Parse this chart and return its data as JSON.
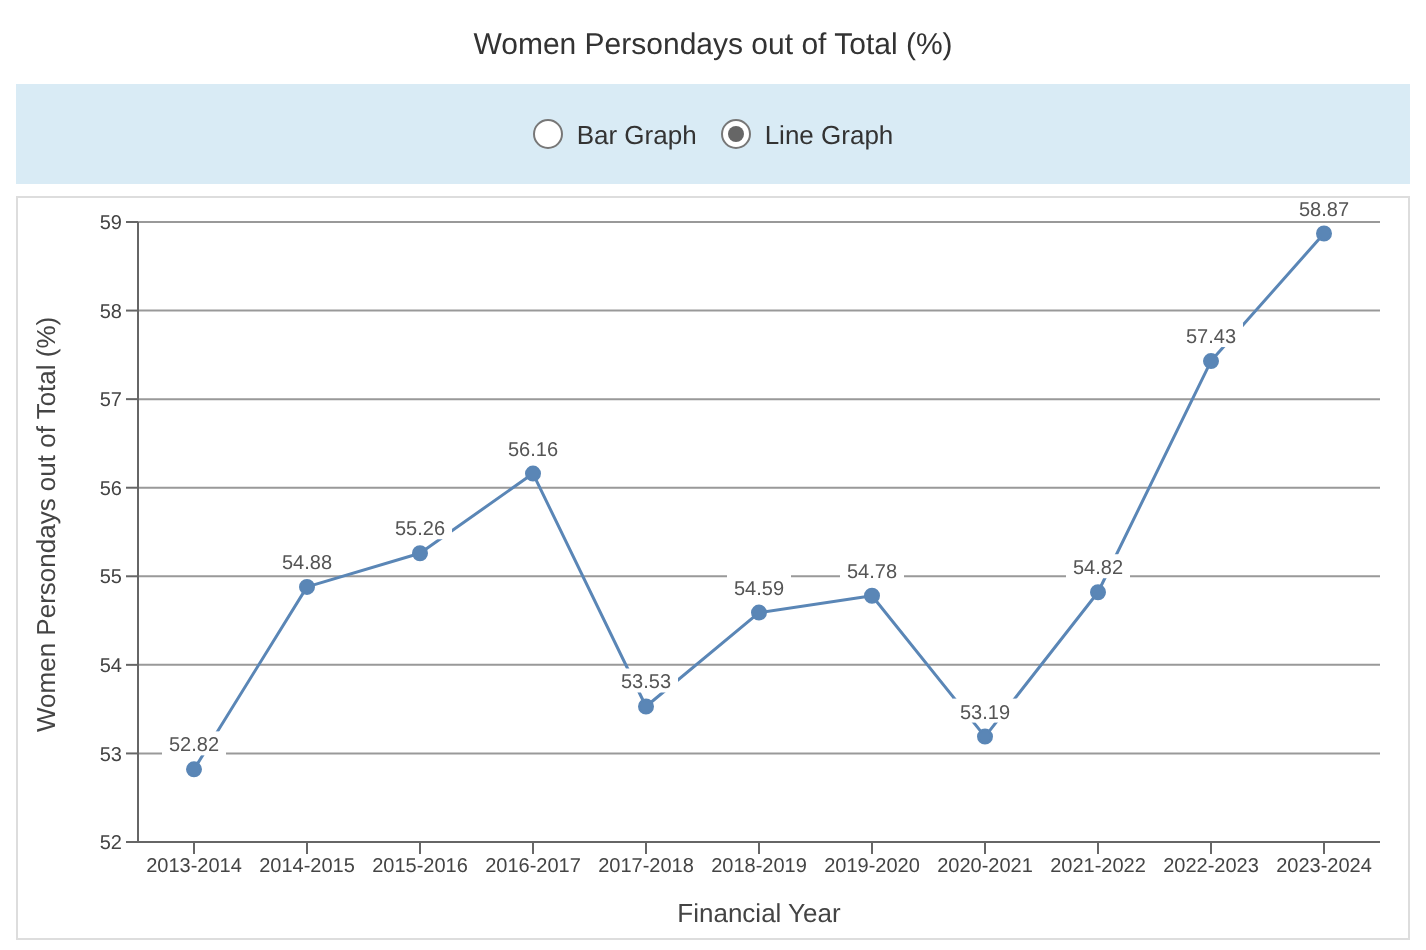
{
  "chart_data": {
    "type": "line",
    "title": "Women Persondays out of Total (%)",
    "annotations": [
      "Bar Graph",
      "Line Graph"
    ],
    "xlabel": "Financial Year",
    "ylabel": "Women Persondays out of Total (%)",
    "categories": [
      "2013-2014",
      "2014-2015",
      "2015-2016",
      "2016-2017",
      "2017-2018",
      "2018-2019",
      "2019-2020",
      "2020-2021",
      "2021-2022",
      "2022-2023",
      "2023-2024"
    ],
    "series": [
      {
        "color": "#5a86b6",
        "values": [
          52.82,
          54.88,
          55.26,
          56.16,
          53.53,
          54.59,
          54.78,
          53.19,
          54.82,
          57.43,
          58.87
        ]
      }
    ],
    "ylim": [
      52,
      59
    ],
    "yticks": [
      52,
      53,
      54,
      55,
      56,
      57,
      58,
      59
    ],
    "grid": "y",
    "marker": "circle",
    "data_labels": true,
    "legend": false
  }
}
